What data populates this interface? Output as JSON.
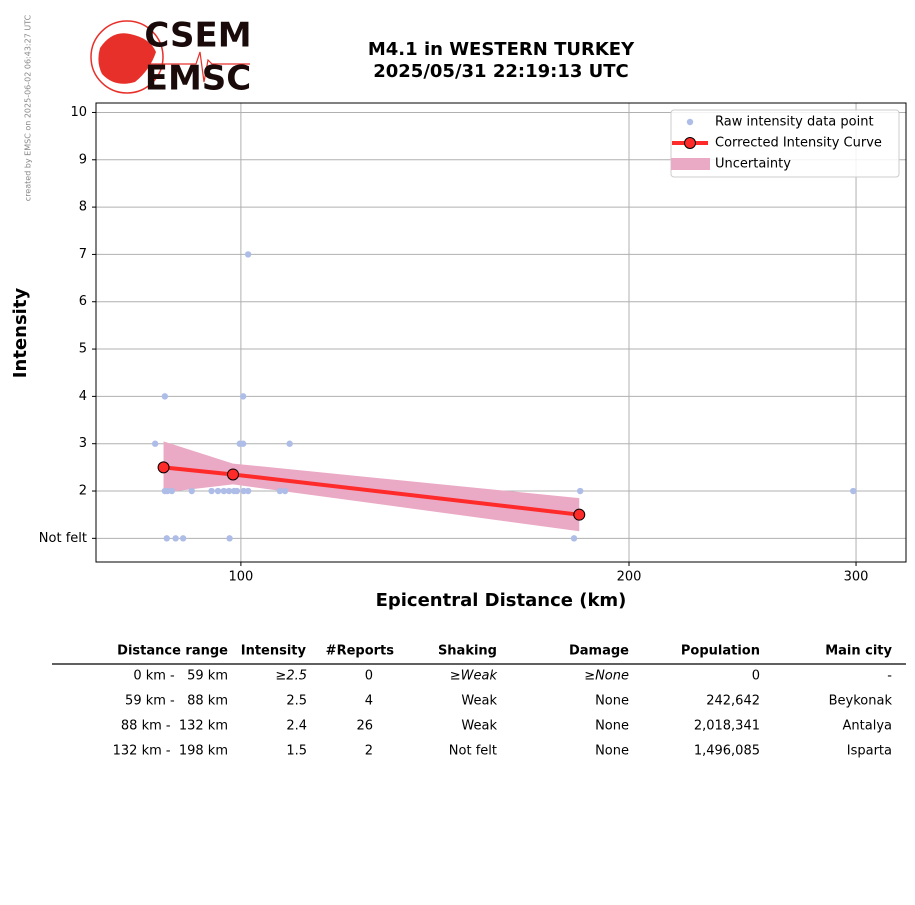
{
  "watermark": "created by EMSC on 2025-06-02 06:43:27 UTC",
  "logo": {
    "top": "CSEM",
    "bottom": "EMSC"
  },
  "chart_data": {
    "type": "scatter",
    "title": [
      "M4.1 in WESTERN TURKEY",
      "2025/05/31 22:19:13 UTC"
    ],
    "x_label": "Epicentral Distance (km)",
    "y_label": "Intensity",
    "xscale": "log",
    "xlim": [
      77.2,
      328
    ],
    "xticks": [
      100,
      200,
      300
    ],
    "ylim": [
      0.5,
      10.2
    ],
    "yticks": [
      {
        "value": 1,
        "label": "Not felt"
      },
      2,
      3,
      4,
      5,
      6,
      7,
      8,
      9,
      10
    ],
    "grid": true,
    "legend": "upper right",
    "series": [
      {
        "name": "Raw intensity data point",
        "color": "#aebde8",
        "x": [
          85.8,
          87.3,
          87.3,
          87.7,
          88.4,
          87.6,
          89.0,
          90.2,
          91.6,
          94.9,
          96.0,
          97.0,
          97.9,
          98.8,
          99.3,
          98.0,
          99.8,
          100.4,
          100.4,
          100.5,
          101.3,
          101.3,
          107.2,
          108.2,
          109.1,
          181.3,
          183.3,
          298.5
        ],
        "values": [
          3,
          4,
          2,
          2,
          2,
          1,
          1,
          1,
          2,
          2,
          2,
          2,
          2,
          2,
          2,
          1,
          3,
          3,
          4,
          2,
          2,
          7,
          2,
          2,
          3,
          1,
          2,
          2
        ]
      },
      {
        "name": "Corrected Intensity Curve",
        "color": "#ff2a2a",
        "x": [
          87.1,
          98.6,
          183.0
        ],
        "values": [
          2.5,
          2.35,
          1.5
        ]
      }
    ],
    "uncertainty": {
      "name": "Uncertainty",
      "color": "#eaa9c4",
      "x": [
        87.1,
        98.6,
        183.0
      ],
      "lower": [
        1.97,
        2.14,
        1.15
      ],
      "upper": [
        3.05,
        2.58,
        1.85
      ]
    }
  },
  "table": {
    "columns": [
      "Distance range",
      "Intensity",
      "#Reports",
      "Shaking",
      "Damage",
      "Population",
      "Main city"
    ],
    "rows": [
      [
        "0 km -   59 km",
        "≥2.5",
        "0",
        "≥Weak",
        "≥None",
        "0",
        "-"
      ],
      [
        "59 km -   88 km",
        "2.5",
        "4",
        "Weak",
        "None",
        "242,642",
        "Beykonak"
      ],
      [
        "88 km -  132 km",
        "2.4",
        "26",
        "Weak",
        "None",
        "2,018,341",
        "Antalya"
      ],
      [
        "132 km -  198 km",
        "1.5",
        "2",
        "Not felt",
        "None",
        "1,496,085",
        "Isparta"
      ]
    ]
  }
}
